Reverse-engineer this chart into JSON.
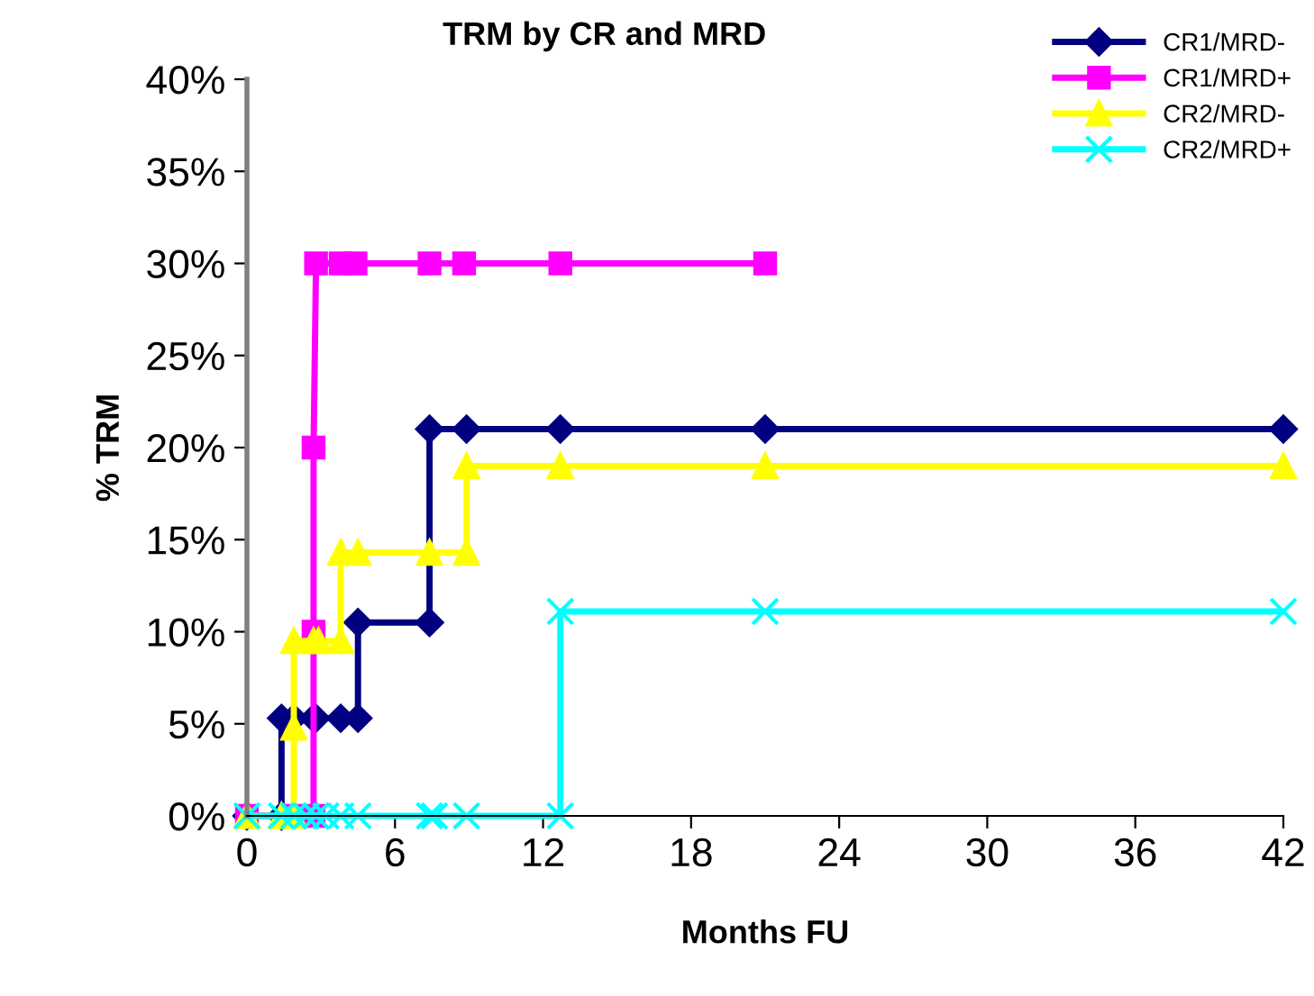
{
  "chart_data": {
    "type": "line",
    "title": "TRM by CR and MRD",
    "xlabel": "Months FU",
    "ylabel": "% TRM",
    "xlim": [
      0,
      42
    ],
    "xticks": [
      0,
      6,
      12,
      18,
      24,
      30,
      36,
      42
    ],
    "ylim": [
      0,
      40
    ],
    "yticks": [
      {
        "value": 0,
        "label": "0%"
      },
      {
        "value": 5,
        "label": "5%"
      },
      {
        "value": 10,
        "label": "10%"
      },
      {
        "value": 15,
        "label": "15%"
      },
      {
        "value": 20,
        "label": "20%"
      },
      {
        "value": 25,
        "label": "25%"
      },
      {
        "value": 30,
        "label": "30%"
      },
      {
        "value": 35,
        "label": "35%"
      },
      {
        "value": 40,
        "label": "40%"
      }
    ],
    "grid": false,
    "legend": "top right",
    "line_style": "solid",
    "series": [
      {
        "name": "CR1/MRD-",
        "color": "#000080",
        "marker": "diamond",
        "x": [
          0,
          1.4,
          1.4,
          1.9,
          2.7,
          2.8,
          3.8,
          4.5,
          4.5,
          7.4,
          7.4,
          8.9,
          12.7,
          21,
          42
        ],
        "values": [
          0,
          0,
          5.3,
          5.3,
          5.3,
          5.3,
          5.3,
          5.3,
          10.5,
          10.5,
          21,
          21,
          21,
          21,
          21
        ]
      },
      {
        "name": "CR1/MRD+",
        "color": "#ff00ff",
        "marker": "square",
        "x": [
          0,
          1.8,
          2.7,
          2.7,
          2.7,
          2.8,
          3.8,
          4.4,
          7.4,
          8.8,
          12.7,
          21
        ],
        "values": [
          0,
          0,
          0,
          10,
          20,
          30,
          30,
          30,
          30,
          30,
          30,
          30
        ]
      },
      {
        "name": "CR2/MRD-",
        "color": "#ffff00",
        "marker": "triangle",
        "x": [
          0,
          1.4,
          1.9,
          1.9,
          1.9,
          2.7,
          2.9,
          3.8,
          3.8,
          4.5,
          7.4,
          8.9,
          8.9,
          12.7,
          21,
          42
        ],
        "values": [
          0,
          0,
          0,
          4.8,
          9.5,
          9.5,
          9.5,
          9.5,
          14.3,
          14.3,
          14.3,
          14.3,
          19,
          19,
          19,
          19
        ]
      },
      {
        "name": "CR2/MRD+",
        "color": "#00ffff",
        "marker": "cross",
        "x": [
          0,
          1.4,
          1.9,
          2.4,
          2.8,
          3.2,
          3.8,
          4.5,
          7.4,
          7.6,
          8.9,
          12.7,
          12.7,
          21,
          42
        ],
        "values": [
          0,
          0,
          0,
          0,
          0,
          0,
          0,
          0,
          0,
          0,
          0,
          0,
          11.1,
          11.1,
          11.1
        ]
      }
    ]
  }
}
